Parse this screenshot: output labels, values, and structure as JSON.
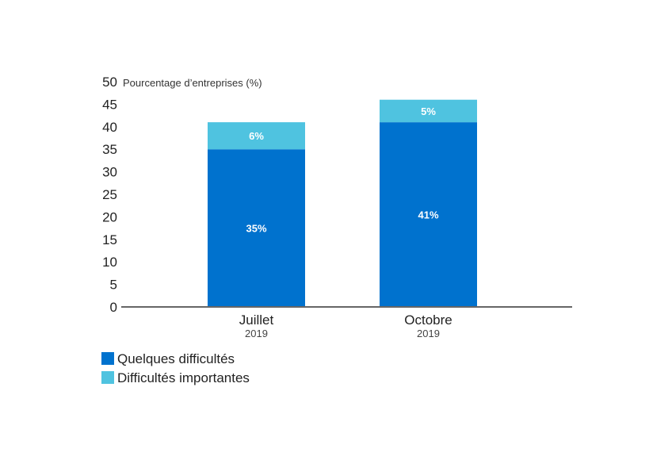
{
  "chart_data": {
    "type": "bar",
    "stacked": true,
    "ylabel": "Pourcentage d’entreprises (%)",
    "ylim": [
      0,
      50
    ],
    "yticks": [
      0,
      5,
      10,
      15,
      20,
      25,
      30,
      35,
      40,
      45,
      50
    ],
    "grid": false,
    "legend_position": "bottom-left",
    "categories": [
      "Juillet",
      "Octobre"
    ],
    "category_sublabels": [
      "2019",
      "2019"
    ],
    "series": [
      {
        "name": "Quelques difficultés",
        "values": [
          35,
          41
        ],
        "labels": [
          "35%",
          "41%"
        ],
        "color": "#0072ce"
      },
      {
        "name": "Difficultés importantes",
        "values": [
          6,
          5
        ],
        "labels": [
          "6%",
          "5%"
        ],
        "color": "#4fc3e0"
      }
    ],
    "axis_color": "#666666"
  }
}
